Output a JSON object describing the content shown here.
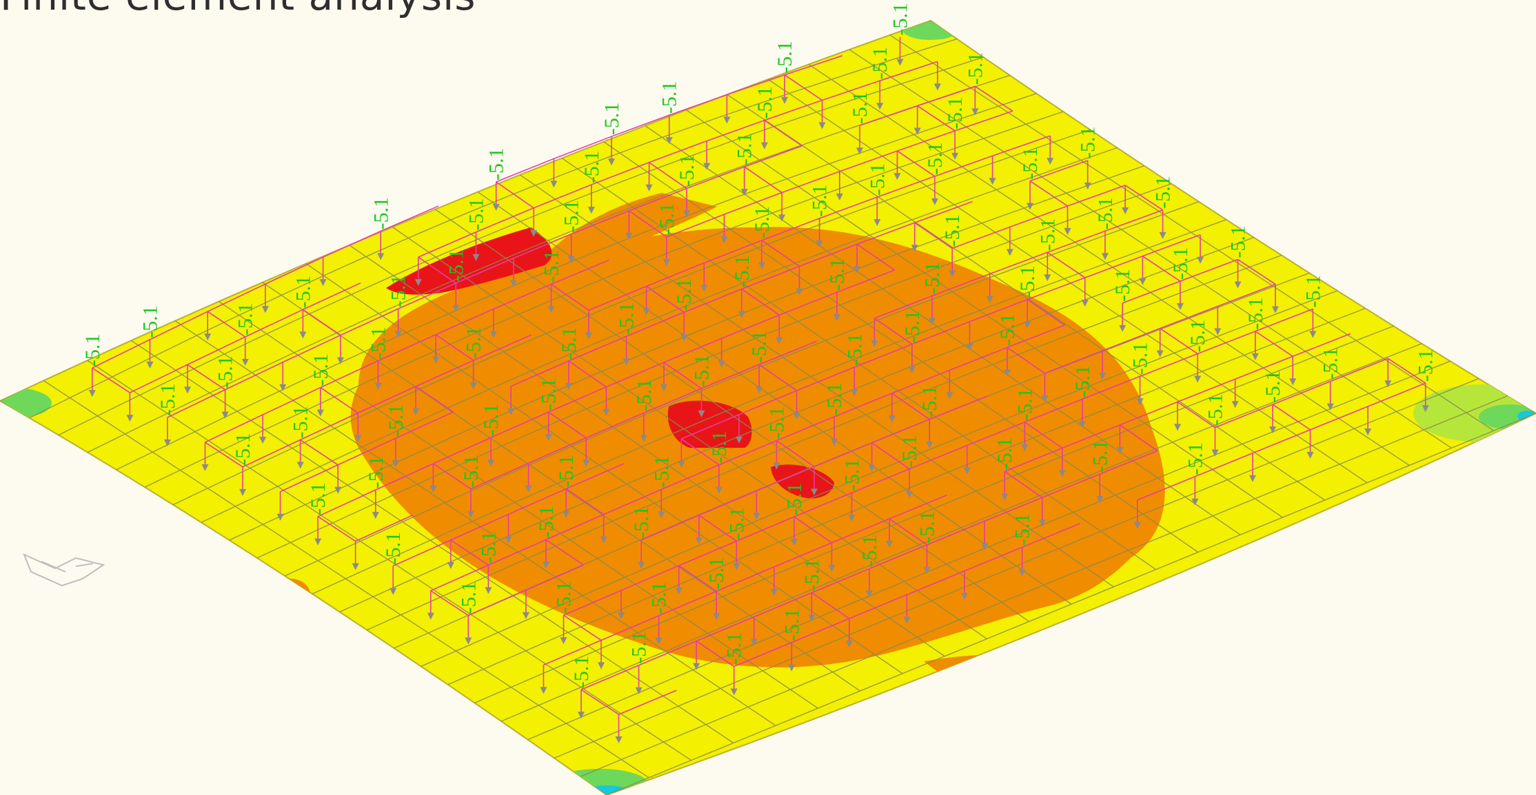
{
  "slide": {
    "title": "Finite element analysis"
  },
  "model": {
    "load_value_label": "-5.1",
    "load_value": -5.1,
    "colors": {
      "background": "#fdfaf0",
      "plate_yellow": "#f3f000",
      "plate_yellow_dark": "#e6d800",
      "contour_orange": "#f08c00",
      "contour_red": "#e81418",
      "corner_green": "#6ed85a",
      "corner_cyan": "#18c8d8",
      "mesh_line": "#8a8a52",
      "frame_line": "#e83ca0",
      "load_arrow": "#8a8a8a",
      "label_green": "#1ec61e"
    }
  }
}
